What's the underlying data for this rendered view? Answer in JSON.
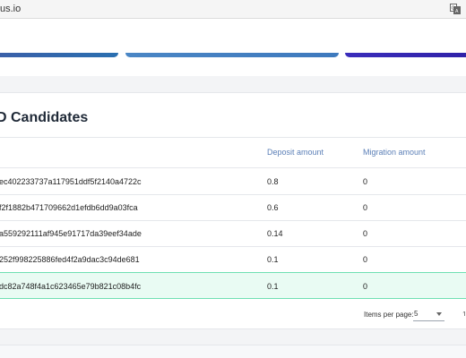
{
  "browser": {
    "url_fragment": "us.io",
    "translate_icon": "translate-icon"
  },
  "colors": {
    "bar_1": "#2a6fb0",
    "bar_2": "#4a86c5",
    "bar_3": "#2f21a7",
    "header_text": "#5b7fb7",
    "selected_row_bg": "#e9fbf3",
    "selected_row_border": "#6fe0b2"
  },
  "candidates": {
    "title": "D Candidates",
    "columns": {
      "deposit": "Deposit amount",
      "migration": "Migration amount"
    },
    "rows": [
      {
        "address": "ec402233737a117951ddf5f2140a4722c",
        "deposit": "0.8",
        "migration": "0"
      },
      {
        "address": "f2f1882b471709662d1efdb6dd9a03fca",
        "deposit": "0.6",
        "migration": "0"
      },
      {
        "address": "a559292111af945e91717da39eef34ade",
        "deposit": "0.14",
        "migration": "0"
      },
      {
        "address": "252f998225886fed4f2a9dac3c94de681",
        "deposit": "0.1",
        "migration": "0"
      },
      {
        "address": "dc82a748f4a1c623465e79b821c08b4fc",
        "deposit": "0.1",
        "migration": "0",
        "selected": true
      }
    ],
    "pagination": {
      "items_per_page_label": "Items per page:",
      "items_per_page_value": "5",
      "next_glyph": "1"
    }
  }
}
